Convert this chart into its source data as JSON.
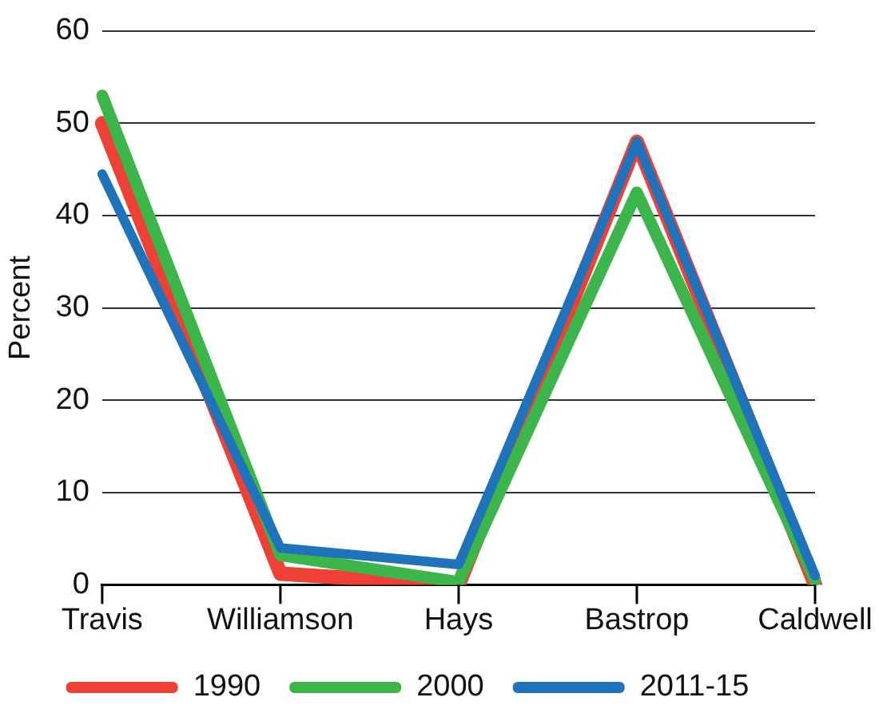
{
  "chart_data": {
    "type": "line",
    "ylabel": "Percent",
    "categories": [
      "Travis",
      "Williamson",
      "Hays",
      "Bastrop",
      "Caldwell"
    ],
    "series": [
      {
        "name": "1990",
        "color": "#ee4035",
        "values": [
          50,
          1.2,
          0,
          48,
          0
        ]
      },
      {
        "name": "2000",
        "color": "#3cb54a",
        "values": [
          53,
          3.2,
          0.3,
          42.5,
          0.5
        ]
      },
      {
        "name": "2011-15",
        "color": "#1f73bb",
        "values": [
          44.5,
          4,
          2.2,
          48,
          1
        ]
      }
    ],
    "ylim": [
      0,
      60
    ],
    "yticks": [
      0,
      10,
      20,
      30,
      40,
      50,
      60
    ],
    "grid": "y",
    "legend": "bottom",
    "marker": "none",
    "line_style": "solid"
  }
}
